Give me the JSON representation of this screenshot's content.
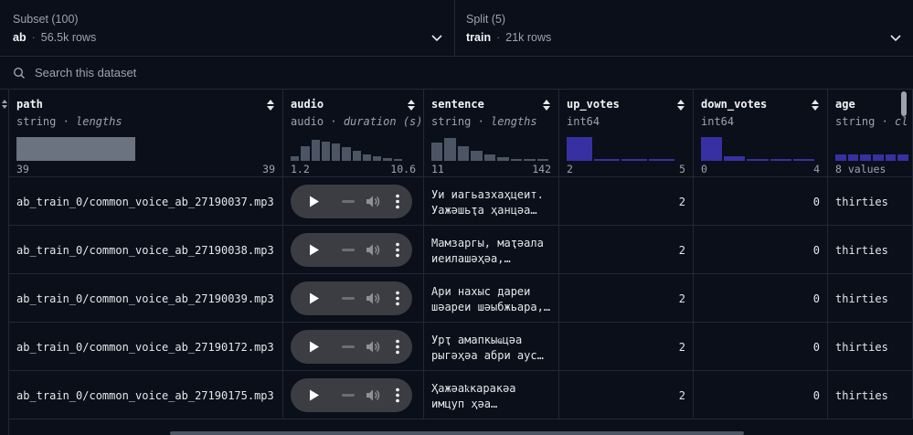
{
  "subset": {
    "label": "Subset (100)",
    "value": "ab",
    "rows": "56.5k rows"
  },
  "split": {
    "label": "Split (5)",
    "value": "train",
    "rows": "21k rows"
  },
  "search": {
    "placeholder": "Search this dataset"
  },
  "columns": [
    {
      "name": "path",
      "type": "string",
      "sub": "lengths",
      "min": "39",
      "max": "39",
      "hist": [
        1.0
      ],
      "hist_color": "#6b7280"
    },
    {
      "name": "audio",
      "type": "audio",
      "sub": "duration (s)",
      "min": "1.2",
      "max": "10.6",
      "hist": [
        0.18,
        0.62,
        0.9,
        0.82,
        0.72,
        0.58,
        0.44,
        0.28,
        0.18,
        0.1,
        0.05
      ],
      "hist_color": "#4b5563"
    },
    {
      "name": "sentence",
      "type": "string",
      "sub": "lengths",
      "min": "11",
      "max": "142",
      "hist": [
        0.78,
        0.95,
        0.6,
        0.42,
        0.26,
        0.14,
        0.07,
        0.03,
        0.02
      ],
      "hist_color": "#4b5563"
    },
    {
      "name": "up_votes",
      "type": "int64",
      "sub": "",
      "min": "2",
      "max": "5",
      "hist": [
        1.0,
        0.08,
        0.05,
        0.04
      ],
      "hist_color": "#3730a3"
    },
    {
      "name": "down_votes",
      "type": "int64",
      "sub": "",
      "min": "0",
      "max": "4",
      "hist": [
        1.0,
        0.2,
        0.08,
        0.05,
        0.04
      ],
      "hist_color": "#3730a3"
    },
    {
      "name": "age",
      "type": "string",
      "sub": "cl",
      "min": "8 values",
      "max": "",
      "hist": [
        0.28,
        0.28,
        0.28,
        0.28,
        0.28,
        0.28
      ],
      "hist_color": "#3730a3"
    }
  ],
  "rows": [
    {
      "path": "ab_train_0/common_voice_ab_27190037.mp3",
      "sentence": [
        "Уи иагьазхаҳцеит.",
        "Уажәшьҭа ҳанцәа…"
      ],
      "up_votes": "2",
      "down_votes": "0",
      "age": "thirties"
    },
    {
      "path": "ab_train_0/common_voice_ab_27190038.mp3",
      "sentence": [
        "Мамзаргы, маҭәала",
        "иеилашәҳәа,…"
      ],
      "up_votes": "2",
      "down_votes": "0",
      "age": "thirties"
    },
    {
      "path": "ab_train_0/common_voice_ab_27190039.mp3",
      "sentence": [
        "Ари нахыс дареи",
        "шәареи шәыбжьара,…"
      ],
      "up_votes": "2",
      "down_votes": "0",
      "age": "thirties"
    },
    {
      "path": "ab_train_0/common_voice_ab_27190172.mp3",
      "sentence": [
        "Урҭ амапкыҩцәа",
        "рыгәҳәа абри аус…"
      ],
      "up_votes": "2",
      "down_votes": "0",
      "age": "thirties"
    },
    {
      "path": "ab_train_0/common_voice_ab_27190175.mp3",
      "sentence": [
        "Ҳажәаҟкаракәа",
        "имцуп ҳәа…"
      ],
      "up_votes": "2",
      "down_votes": "0",
      "age": "thirties"
    }
  ]
}
